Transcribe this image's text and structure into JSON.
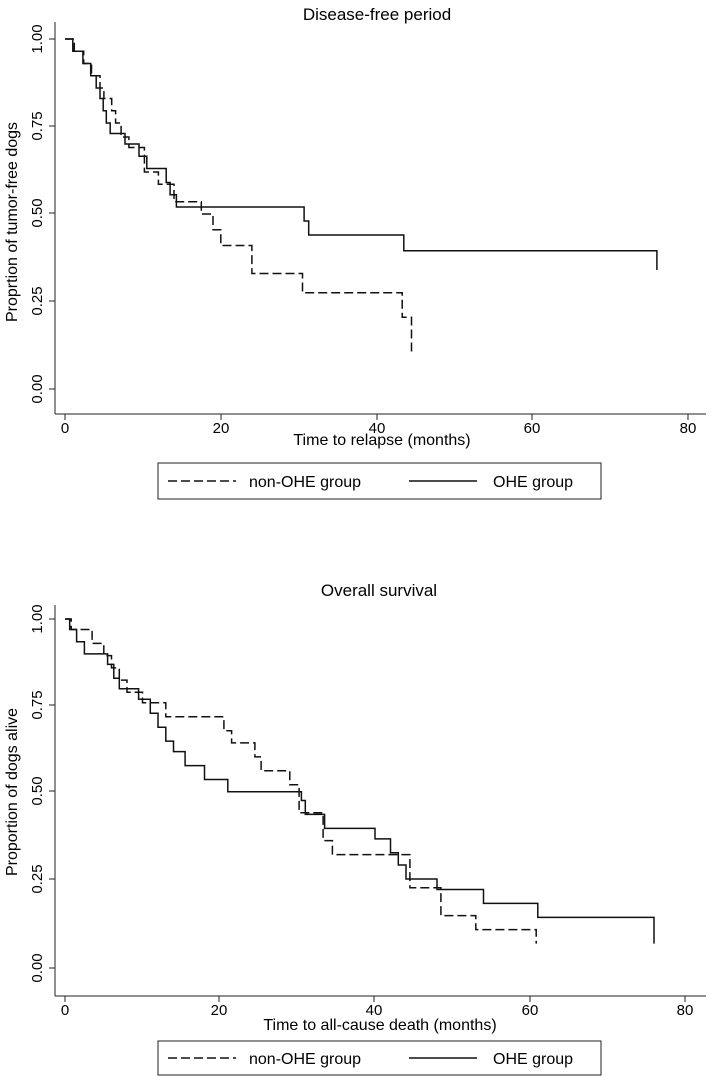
{
  "colors": {
    "line": "#111111",
    "axis": "#222222",
    "background": "#ffffff"
  },
  "chart_data": [
    {
      "type": "line",
      "step": true,
      "title": "Disease-free period",
      "xlabel": "Time to relapse (months)",
      "ylabel": "Proprtion of tumor-free dogs",
      "xlim": [
        0,
        80
      ],
      "ylim": [
        0,
        1
      ],
      "xticks": [
        "0",
        "20",
        "40",
        "60",
        "80"
      ],
      "yticks": [
        "0.00",
        "0.25",
        "0.50",
        "0.75",
        "1.00"
      ],
      "grid": false,
      "legend_position": "bottom",
      "series": [
        {
          "name": "non-OHE group",
          "style": "dashed",
          "x": [
            0,
            1.2,
            2.4,
            3.4,
            4.5,
            5.0,
            6.0,
            6.5,
            7.2,
            8.2,
            10.2,
            12.0,
            14.0,
            17.5,
            19.0,
            20.0,
            24.0,
            30.5,
            43.3,
            44.5
          ],
          "y": [
            1.0,
            0.965,
            0.93,
            0.895,
            0.86,
            0.83,
            0.795,
            0.76,
            0.72,
            0.69,
            0.62,
            0.585,
            0.535,
            0.5,
            0.455,
            0.41,
            0.33,
            0.275,
            0.205,
            0.1
          ]
        },
        {
          "name": "OHE group",
          "style": "solid",
          "x": [
            0,
            1.0,
            2.3,
            3.3,
            4.0,
            4.5,
            4.9,
            5.3,
            5.8,
            7.7,
            9.5,
            10.5,
            13.0,
            13.5,
            14.3,
            22.8,
            30.7,
            31.3,
            43.5,
            76.0
          ],
          "y": [
            1.0,
            0.965,
            0.93,
            0.895,
            0.86,
            0.83,
            0.795,
            0.76,
            0.73,
            0.7,
            0.665,
            0.63,
            0.59,
            0.555,
            0.52,
            0.52,
            0.48,
            0.44,
            0.395,
            0.34
          ]
        }
      ]
    },
    {
      "type": "line",
      "step": true,
      "title": "Overall survival",
      "xlabel": "Time to all-cause death (months)",
      "ylabel": "Proportion of dogs alive",
      "xlim": [
        0,
        80
      ],
      "ylim": [
        0,
        1
      ],
      "xticks": [
        "0",
        "20",
        "40",
        "60",
        "80"
      ],
      "yticks": [
        "0.00",
        "0.25",
        "0.50",
        "0.75",
        "1.00"
      ],
      "grid": false,
      "legend_position": "bottom",
      "series": [
        {
          "name": "non-OHE group",
          "style": "dashed",
          "x": [
            0,
            0.8,
            3.5,
            5.0,
            6.0,
            7.0,
            8.0,
            10.0,
            13.0,
            17.5,
            20.5,
            21.5,
            24.5,
            25.3,
            29.0,
            30.2,
            33.3,
            34.5,
            44.5,
            48.5,
            53.0,
            60.8
          ],
          "y": [
            1.0,
            0.97,
            0.93,
            0.895,
            0.86,
            0.825,
            0.79,
            0.76,
            0.72,
            0.72,
            0.68,
            0.645,
            0.605,
            0.565,
            0.525,
            0.445,
            0.365,
            0.325,
            0.23,
            0.15,
            0.11,
            0.07
          ]
        },
        {
          "name": "OHE group",
          "style": "solid",
          "x": [
            0,
            0.6,
            1.5,
            2.5,
            5.5,
            6.3,
            7.0,
            9.5,
            11.0,
            12.0,
            13.0,
            14.0,
            15.5,
            18.0,
            21.0,
            25.0,
            30.5,
            31.0,
            33.5,
            40.0,
            42.0,
            43.0,
            44.0,
            48.0,
            54.0,
            61.0,
            76.0
          ],
          "y": [
            1.0,
            0.97,
            0.935,
            0.9,
            0.87,
            0.83,
            0.8,
            0.77,
            0.73,
            0.69,
            0.65,
            0.62,
            0.58,
            0.54,
            0.505,
            0.505,
            0.48,
            0.44,
            0.4,
            0.37,
            0.33,
            0.295,
            0.255,
            0.225,
            0.185,
            0.145,
            0.07
          ]
        }
      ]
    }
  ]
}
